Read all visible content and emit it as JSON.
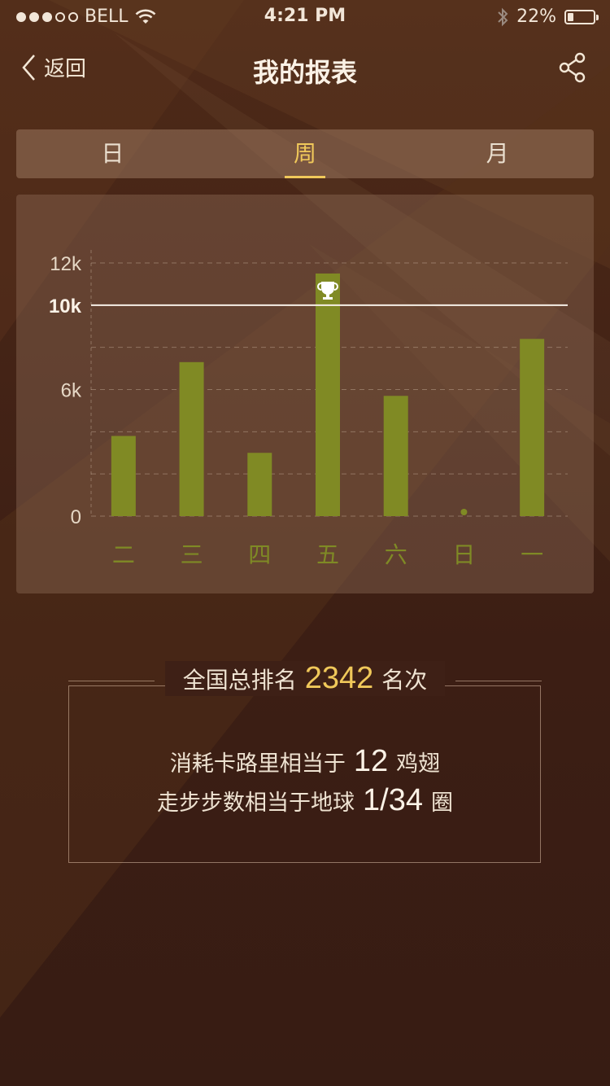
{
  "status_bar": {
    "carrier": "BELL",
    "time": "4:21 PM",
    "battery_percent": "22%",
    "battery_level": 0.22,
    "signal_bars_filled": 3,
    "signal_bars_total": 5
  },
  "nav": {
    "back_label": "返回",
    "title": "我的报表"
  },
  "tabs": [
    {
      "label": "日",
      "active": false
    },
    {
      "label": "周",
      "active": true
    },
    {
      "label": "月",
      "active": false
    }
  ],
  "colors": {
    "accent": "#f0c85a",
    "bar": "#808a24",
    "day_label": "#7f8a25"
  },
  "chart_data": {
    "type": "bar",
    "categories": [
      "二",
      "三",
      "四",
      "五",
      "六",
      "日",
      "一"
    ],
    "values": [
      3800,
      7300,
      3000,
      11500,
      5700,
      0,
      8400
    ],
    "ylim": [
      0,
      12000
    ],
    "yticks": [
      0,
      6000,
      12000
    ],
    "ytick_labels": [
      "0",
      "6k",
      "12k"
    ],
    "goal": 10000,
    "goal_label": "10k",
    "max_marker_icon": "trophy-icon",
    "grid": true
  },
  "summary": {
    "rank_prefix": "全国总排名",
    "rank_value": "2342",
    "rank_suffix": "名次",
    "fact1_prefix": "消耗卡路里相当于",
    "fact1_value": "12",
    "fact1_suffix": "鸡翅",
    "fact2_prefix": "走步步数相当于地球",
    "fact2_value": "1/34",
    "fact2_suffix": "圈"
  }
}
